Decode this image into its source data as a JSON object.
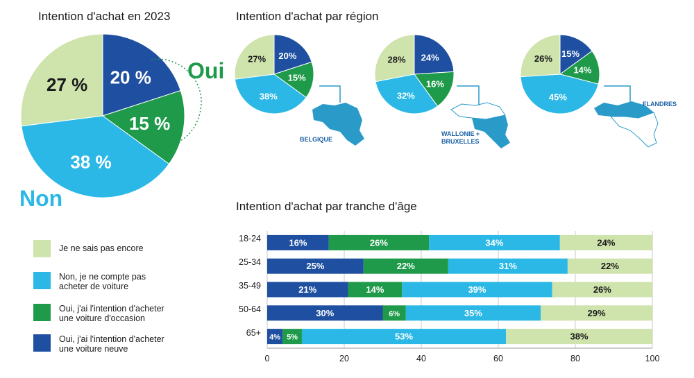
{
  "colors": {
    "dark_blue": "#1f4fa0",
    "green": "#1e9a4a",
    "light_blue": "#2bb8e6",
    "pale_green": "#cfe3ac",
    "accent_text": "#1a5fa3"
  },
  "main_pie": {
    "title": "Intention d'achat en 2023",
    "oui_label": "Oui",
    "non_label": "Non"
  },
  "region_section": {
    "title": "Intention d'achat par région"
  },
  "age_section": {
    "title": "Intention d'achat par tranche d'âge"
  },
  "legend": [
    {
      "label": "Je ne sais pas encore",
      "color": "#cfe3ac"
    },
    {
      "label": "Non, je ne compte pas acheter de voiture",
      "color": "#2bb8e6"
    },
    {
      "label": "Oui, j'ai l'intention d'acheter une voiture d'occasion",
      "color": "#1e9a4a"
    },
    {
      "label": "Oui, j'ai l'intention d'acheter une voiture neuve",
      "color": "#1f4fa0"
    }
  ],
  "chart_data": [
    {
      "type": "pie",
      "title": "Intention d'achat en 2023",
      "slices": [
        {
          "label": "Oui, voiture neuve",
          "value": 20,
          "text": "20 %"
        },
        {
          "label": "Oui, voiture d'occasion",
          "value": 15,
          "text": "15 %"
        },
        {
          "label": "Non",
          "value": 38,
          "text": "38 %"
        },
        {
          "label": "Je ne sais pas encore",
          "value": 27,
          "text": "27 %"
        }
      ]
    },
    {
      "type": "pie",
      "title": "Intention d'achat par région",
      "region": "BELGIQUE",
      "slices": [
        {
          "label": "Oui, voiture neuve",
          "value": 20,
          "text": "20%"
        },
        {
          "label": "Oui, voiture d'occasion",
          "value": 15,
          "text": "15%"
        },
        {
          "label": "Non",
          "value": 38,
          "text": "38%"
        },
        {
          "label": "Je ne sais pas encore",
          "value": 27,
          "text": "27%"
        }
      ]
    },
    {
      "type": "pie",
      "title": "Intention d'achat par région",
      "region": "WALLONIE + BRUXELLES",
      "slices": [
        {
          "label": "Oui, voiture neuve",
          "value": 24,
          "text": "24%"
        },
        {
          "label": "Oui, voiture d'occasion",
          "value": 16,
          "text": "16%"
        },
        {
          "label": "Non",
          "value": 32,
          "text": "32%"
        },
        {
          "label": "Je ne sais pas encore",
          "value": 28,
          "text": "28%"
        }
      ]
    },
    {
      "type": "pie",
      "title": "Intention d'achat par région",
      "region": "FLANDRES",
      "slices": [
        {
          "label": "Oui, voiture neuve",
          "value": 15,
          "text": "15%"
        },
        {
          "label": "Oui, voiture d'occasion",
          "value": 14,
          "text": "14%"
        },
        {
          "label": "Non",
          "value": 45,
          "text": "45%"
        },
        {
          "label": "Je ne sais pas encore",
          "value": 26,
          "text": "26%"
        }
      ]
    },
    {
      "type": "bar",
      "orientation": "horizontal-stacked",
      "title": "Intention d'achat par tranche d'âge",
      "categories": [
        "18-24",
        "25-34",
        "35-49",
        "50-64",
        "65+"
      ],
      "series": [
        {
          "name": "Oui, j'ai l'intention d'acheter une voiture neuve",
          "values": [
            16,
            25,
            21,
            30,
            4
          ],
          "texts": [
            "16%",
            "25%",
            "21%",
            "30%",
            "4%"
          ]
        },
        {
          "name": "Oui, j'ai l'intention d'acheter une voiture d'occasion",
          "values": [
            26,
            22,
            14,
            6,
            5
          ],
          "texts": [
            "26%",
            "22%",
            "14%",
            "6%",
            "5%"
          ]
        },
        {
          "name": "Non, je ne compte pas acheter de voiture",
          "values": [
            34,
            31,
            39,
            35,
            53
          ],
          "texts": [
            "34%",
            "31%",
            "39%",
            "35%",
            "53%"
          ]
        },
        {
          "name": "Je ne sais pas encore",
          "values": [
            24,
            22,
            26,
            29,
            38
          ],
          "texts": [
            "24%",
            "22%",
            "26%",
            "29%",
            "38%"
          ]
        }
      ],
      "xlim": [
        0,
        100
      ],
      "xticks": [
        "0",
        "20",
        "40",
        "60",
        "80",
        "100"
      ],
      "grid": true
    }
  ]
}
